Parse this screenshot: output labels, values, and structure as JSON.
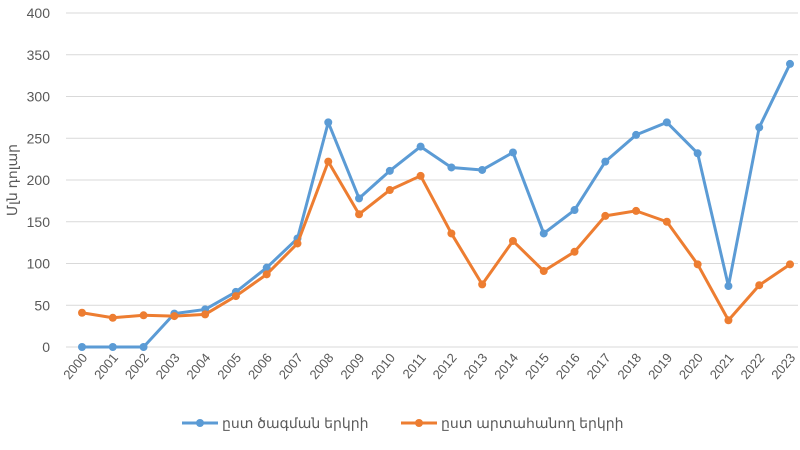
{
  "chart_data": {
    "type": "line",
    "title": "",
    "xlabel": "",
    "ylabel": "Մլն դոլար",
    "ylim": [
      0,
      400
    ],
    "yticks": [
      0,
      50,
      100,
      150,
      200,
      250,
      300,
      350,
      400
    ],
    "grid": true,
    "legend_position": "bottom",
    "categories": [
      "2000",
      "2001",
      "2002",
      "2003",
      "2004",
      "2005",
      "2006",
      "2007",
      "2008",
      "2009",
      "2010",
      "2011",
      "2012",
      "2013",
      "2014",
      "2015",
      "2016",
      "2017",
      "2018",
      "2019",
      "2020",
      "2021",
      "2022",
      "2023"
    ],
    "series": [
      {
        "name": "ըստ ծագման երկրի",
        "color": "#5B9BD5",
        "values": [
          0,
          0,
          0,
          40,
          45,
          66,
          95,
          130,
          269,
          178,
          211,
          240,
          215,
          212,
          233,
          136,
          164,
          222,
          254,
          269,
          232,
          73,
          263,
          339
        ]
      },
      {
        "name": "ըստ արտահանող երկրի",
        "color": "#ED7D31",
        "values": [
          41,
          35,
          38,
          37,
          39,
          61,
          87,
          124,
          222,
          159,
          188,
          205,
          136,
          75,
          127,
          91,
          114,
          157,
          163,
          150,
          99,
          32,
          74,
          99
        ]
      }
    ]
  }
}
